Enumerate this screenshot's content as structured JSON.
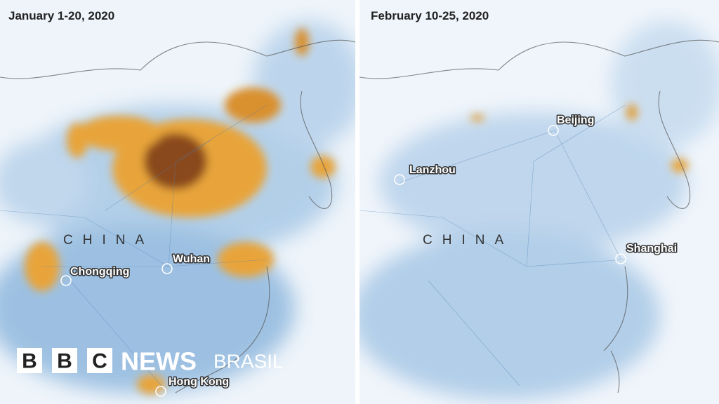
{
  "panels": [
    {
      "title": "January 1-20, 2020",
      "country": "CHINA",
      "cities": [
        "Chongqing",
        "Wuhan",
        "Hong Kong"
      ]
    },
    {
      "title": "February 10-25, 2020",
      "country": "CHINA",
      "cities": [
        "Lanzhou",
        "Beijing",
        "Shanghai"
      ]
    }
  ],
  "logo": {
    "letters": [
      "B",
      "B",
      "C"
    ],
    "brand": "NEWS",
    "edition": "BRASIL"
  }
}
